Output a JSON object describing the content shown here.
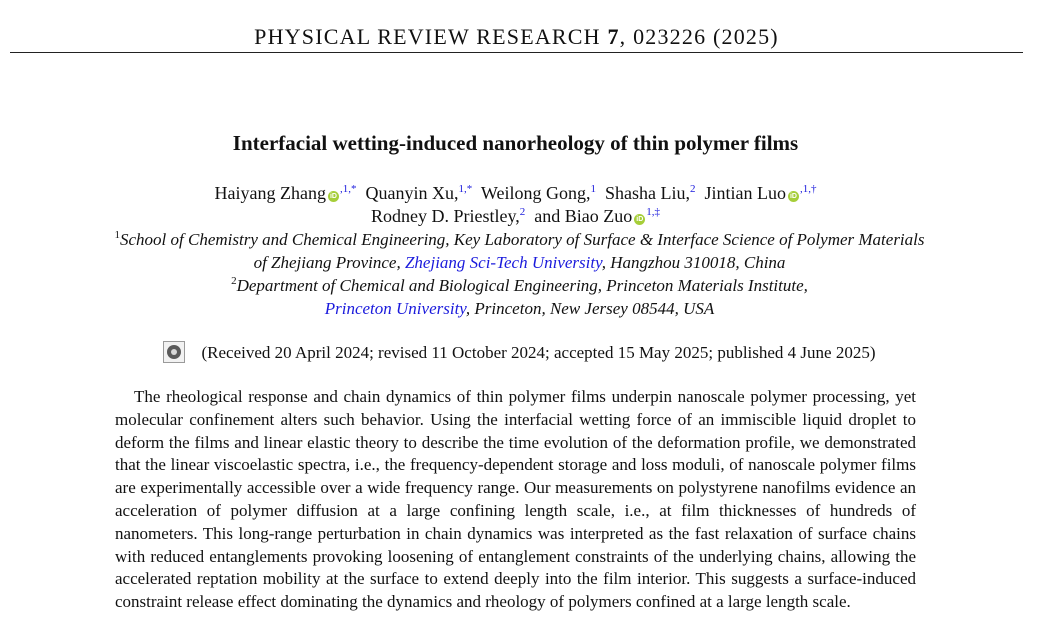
{
  "header": {
    "journal": "PHYSICAL REVIEW RESEARCH",
    "volume": "7",
    "citation": ", 023226 (2025)"
  },
  "title": "Interfacial wetting-induced nanorheology of thin polymer films",
  "authors": [
    {
      "name": "Haiyang Zhang",
      "orcid": true,
      "sup": ",1,*"
    },
    {
      "name": "Quanyin Xu,",
      "orcid": false,
      "sup": "1,*"
    },
    {
      "name": "Weilong Gong,",
      "orcid": false,
      "sup": "1"
    },
    {
      "name": "Shasha Liu,",
      "orcid": false,
      "sup": "2"
    },
    {
      "name": "Jintian Luo",
      "orcid": true,
      "sup": ",1,†"
    },
    {
      "name": "Rodney D. Priestley,",
      "orcid": false,
      "sup": "2"
    },
    {
      "name": "and Biao Zuo",
      "orcid": true,
      "sup": "1,‡"
    }
  ],
  "orcid_icon": "orcid-icon",
  "orcid_label": "iD",
  "affiliations": {
    "a1_sup": "1",
    "a1_text": "School of Chemistry and Chemical Engineering, Key Laboratory of Surface & Interface Science of Polymer Materials",
    "a1b_pre": "of Zhejiang Province, ",
    "a1b_link": "Zhejiang Sci-Tech University",
    "a1b_post": ", Hangzhou 310018, China",
    "a2_sup": "2",
    "a2_text": "Department of Chemical and Biological Engineering, Princeton Materials Institute,",
    "a2b_link": "Princeton University",
    "a2b_post": ", Princeton, New Jersey 08544, USA"
  },
  "received": "(Received 20 April 2024; revised 11 October 2024; accepted 15 May 2025; published 4 June 2025)",
  "check_icon": "check-for-updates-icon",
  "abstract": "The rheological response and chain dynamics of thin polymer films underpin nanoscale polymer processing, yet molecular confinement alters such behavior. Using the interfacial wetting force of an immiscible liquid droplet to deform the films and linear elastic theory to describe the time evolution of the deformation profile, we demonstrated that the linear viscoelastic spectra, i.e., the frequency-dependent storage and loss moduli, of nanoscale polymer films are experimentally accessible over a wide frequency range. Our measurements on polystyrene nanofilms evidence an acceleration of polymer diffusion at a large confining length scale, i.e., at film thicknesses of hundreds of nanometers. This long-range perturbation in chain dynamics was interpreted as the fast relaxation of surface chains with reduced entanglements provoking loosening of entanglement constraints of the underlying chains, allowing the accelerated reptation mobility at the surface to extend deeply into the film interior. This suggests a surface-induced constraint release effect dominating the dynamics and rheology of polymers confined at a large length scale.",
  "colors": {
    "link": "#1a1adc",
    "orcid": "#a6ce39",
    "text": "#111111"
  }
}
